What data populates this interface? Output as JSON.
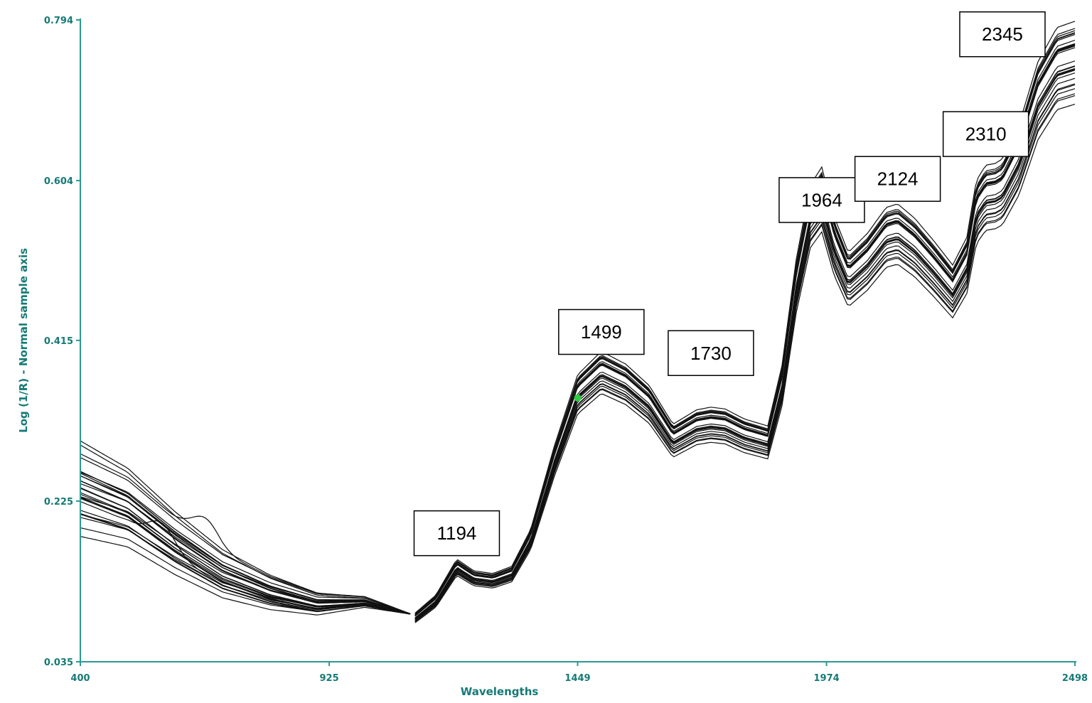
{
  "chart_data": {
    "type": "line",
    "title": "",
    "xlabel": "Wavelengths",
    "ylabel": "Log (1/R) - Normal sample axis",
    "xlim": [
      400,
      2498
    ],
    "ylim": [
      0.035,
      0.794
    ],
    "x_ticks": [
      400,
      925,
      1449,
      1974,
      2498
    ],
    "y_ticks": [
      0.035,
      0.225,
      0.415,
      0.604,
      0.794
    ],
    "grid": false,
    "legend": "none",
    "colors": {
      "axis": "#2a9a94",
      "tick_text": "#167a76",
      "spectra": "#111111",
      "marker": "#2ecc40"
    },
    "gap_x": [
      1100,
      1106
    ],
    "reference_spectrum": {
      "x": [
        400,
        500,
        600,
        700,
        800,
        900,
        1000,
        1100,
        1106,
        1150,
        1194,
        1230,
        1270,
        1310,
        1350,
        1400,
        1449,
        1499,
        1550,
        1600,
        1650,
        1700,
        1730,
        1760,
        1800,
        1850,
        1880,
        1910,
        1940,
        1964,
        1990,
        2020,
        2060,
        2100,
        2124,
        2160,
        2200,
        2240,
        2270,
        2290,
        2310,
        2330,
        2345,
        2380,
        2420,
        2460,
        2498
      ],
      "y": [
        0.24,
        0.218,
        0.176,
        0.14,
        0.118,
        0.104,
        0.106,
        0.091,
        0.087,
        0.107,
        0.147,
        0.134,
        0.131,
        0.139,
        0.18,
        0.273,
        0.352,
        0.378,
        0.364,
        0.34,
        0.297,
        0.313,
        0.316,
        0.314,
        0.303,
        0.295,
        0.362,
        0.48,
        0.563,
        0.583,
        0.528,
        0.488,
        0.509,
        0.538,
        0.542,
        0.526,
        0.501,
        0.474,
        0.505,
        0.568,
        0.585,
        0.587,
        0.592,
        0.63,
        0.7,
        0.738,
        0.745
      ]
    },
    "sample_count": 30,
    "marker": {
      "x": 1449,
      "y": 0.347
    },
    "annotations": [
      {
        "text": "1194",
        "x": 1194,
        "y": 0.187
      },
      {
        "text": "1499",
        "x": 1499,
        "y": 0.425
      },
      {
        "text": "1730",
        "x": 1730,
        "y": 0.4
      },
      {
        "text": "1964",
        "x": 1964,
        "y": 0.581
      },
      {
        "text": "2124",
        "x": 2124,
        "y": 0.606
      },
      {
        "text": "2310",
        "x": 2310,
        "y": 0.659
      },
      {
        "text": "2345",
        "x": 2345,
        "y": 0.777
      }
    ]
  }
}
